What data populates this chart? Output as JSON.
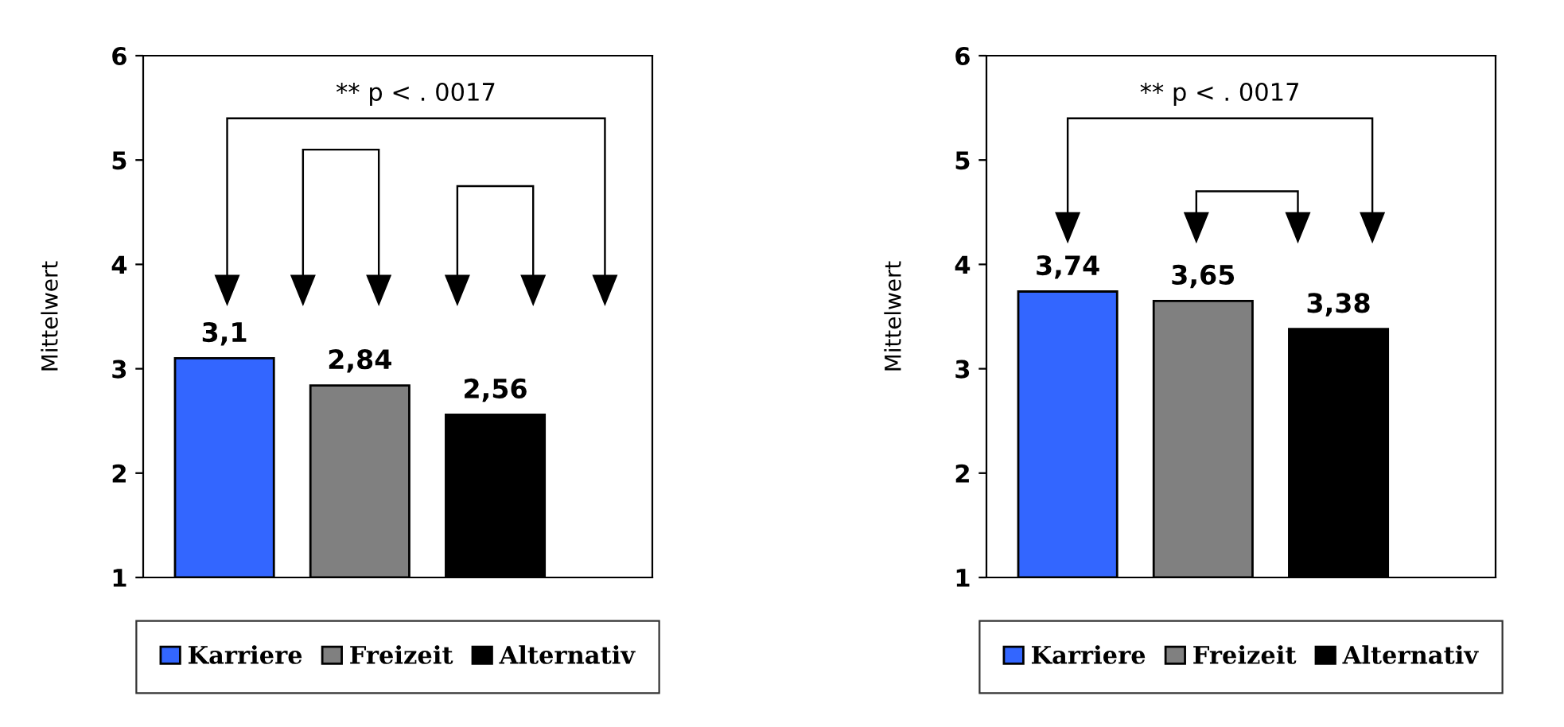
{
  "chart_data": [
    {
      "type": "bar",
      "categories": [
        null
      ],
      "ylabel": "Mittelwert",
      "ylim": [
        1,
        6
      ],
      "yticks": [
        1,
        2,
        3,
        4,
        5,
        6
      ],
      "grid": false,
      "legend": "bottom",
      "annotations": [
        "** p < . 0017"
      ],
      "series": [
        {
          "name": "Karriere",
          "color": "#3366ff",
          "values": [
            3.1
          ],
          "value_labels": [
            "3,1"
          ]
        },
        {
          "name": "Freizeit",
          "color": "#808080",
          "values": [
            2.84
          ],
          "value_labels": [
            "2,84"
          ]
        },
        {
          "name": "Alternativ",
          "color": "#000000",
          "values": [
            2.56
          ],
          "value_labels": [
            "2,56"
          ]
        }
      ]
    },
    {
      "type": "bar",
      "categories": [
        null
      ],
      "ylabel": "Mittelwert",
      "ylim": [
        1,
        6
      ],
      "yticks": [
        1,
        2,
        3,
        4,
        5,
        6
      ],
      "grid": false,
      "legend": "bottom",
      "annotations": [
        "** p < . 0017"
      ],
      "series": [
        {
          "name": "Karriere",
          "color": "#3366ff",
          "values": [
            3.74
          ],
          "value_labels": [
            "3,74"
          ]
        },
        {
          "name": "Freizeit",
          "color": "#808080",
          "values": [
            3.65
          ],
          "value_labels": [
            "3,65"
          ]
        },
        {
          "name": "Alternativ",
          "color": "#000000",
          "values": [
            3.38
          ],
          "value_labels": [
            "3,38"
          ]
        }
      ]
    }
  ]
}
